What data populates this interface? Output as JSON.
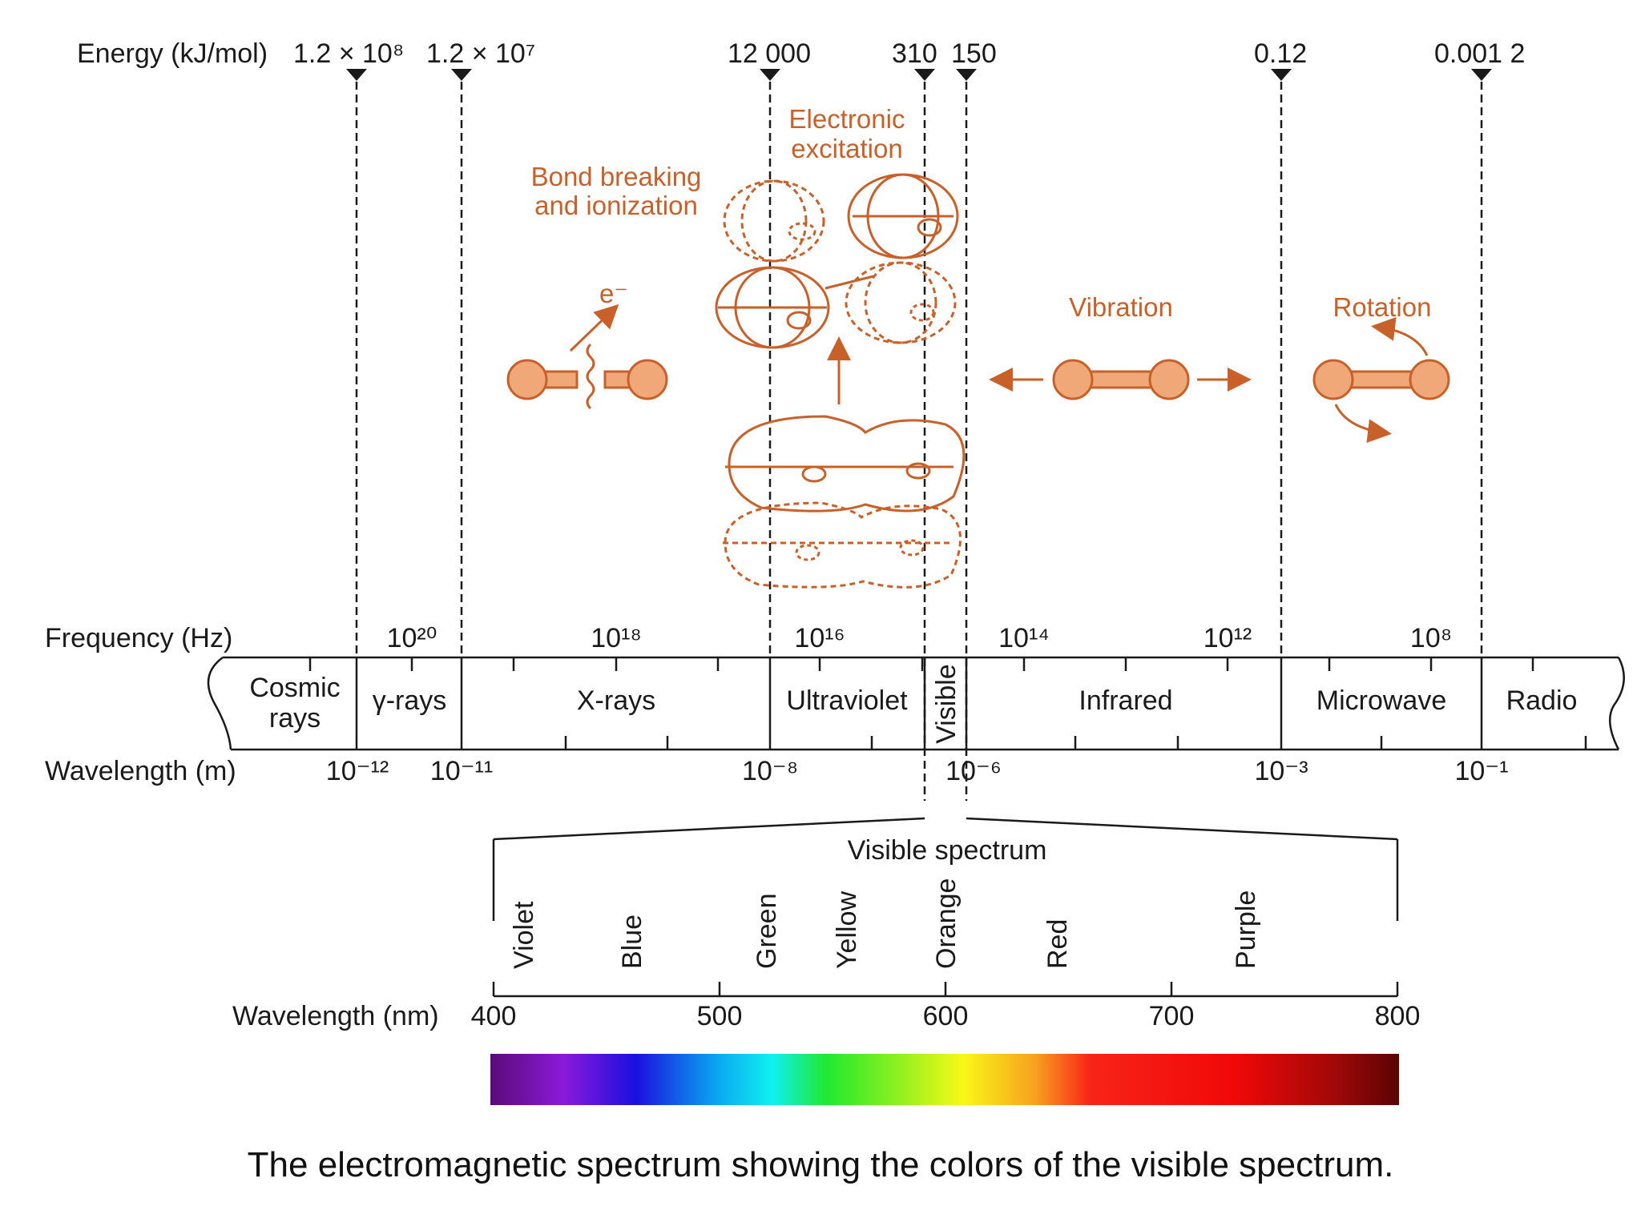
{
  "energy": {
    "axis_label": "Energy (kJ/mol)",
    "markers": [
      {
        "label": "1.2 × 10⁸"
      },
      {
        "label": "1.2 × 10⁷"
      },
      {
        "label": "12 000"
      },
      {
        "label": "310"
      },
      {
        "label": "150"
      },
      {
        "label": "0.12"
      },
      {
        "label": "0.001 2"
      }
    ]
  },
  "frequency": {
    "axis_label": "Frequency (Hz)",
    "ticks": [
      "10²⁰",
      "10¹⁸",
      "10¹⁶",
      "10¹⁴",
      "10¹²",
      "10⁸"
    ]
  },
  "wavelength_m": {
    "axis_label": "Wavelength (m)",
    "ticks": [
      "10⁻¹²",
      "10⁻¹¹",
      "10⁻⁸",
      "10⁻⁶",
      "10⁻³",
      "10⁻¹"
    ]
  },
  "bands": {
    "cosmic_line1": "Cosmic",
    "cosmic_line2": "rays",
    "gamma": "γ-rays",
    "xray": "X-rays",
    "uv": "Ultraviolet",
    "visible": "Visible",
    "ir": "Infrared",
    "microwave": "Microwave",
    "radio": "Radio"
  },
  "processes": {
    "bond_line1": "Bond breaking",
    "bond_line2": "and ionization",
    "electron": "e⁻",
    "electronic_line1": "Electronic",
    "electronic_line2": "excitation",
    "vibration": "Vibration",
    "rotation": "Rotation"
  },
  "visible_spectrum": {
    "title": "Visible spectrum",
    "colors": [
      "Violet",
      "Blue",
      "Green",
      "Yellow",
      "Orange",
      "Red",
      "Purple"
    ],
    "axis_label": "Wavelength (nm)",
    "ticks": [
      "400",
      "500",
      "600",
      "700",
      "800"
    ]
  },
  "caption": "The electromagnetic spectrum showing the colors of the visible spectrum.",
  "colors": {
    "accent_orange": "#c8602a",
    "molecule_fill": "#f0a878"
  }
}
